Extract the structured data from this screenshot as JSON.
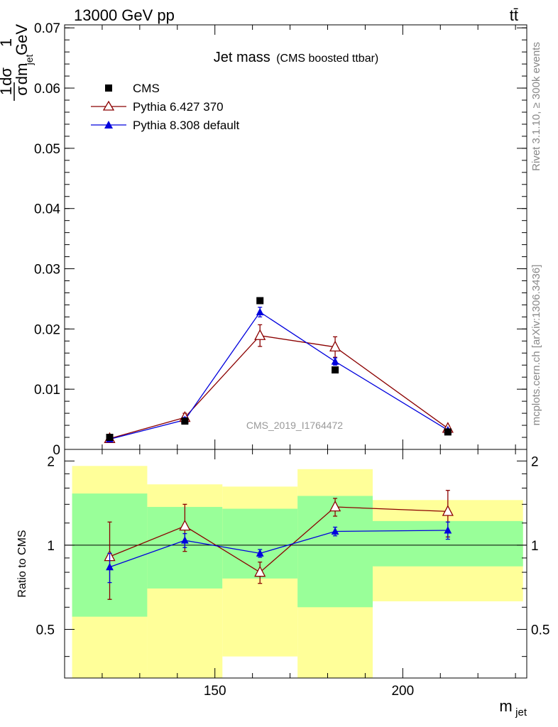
{
  "header": {
    "left": "13000 GeV pp",
    "right": "tt̄"
  },
  "side_labels": {
    "rivet": "Rivet 3.1.10, ≥ 300k events",
    "mcplots": "mcplots.cern.ch [arXiv:1306.3436]"
  },
  "colors": {
    "cms": "#000000",
    "pythia6": "#8b0000",
    "pythia8": "#0000dd",
    "band_outer": "#ffff99",
    "band_inner": "#99ff99",
    "watermark": "#999999",
    "side_text": "#888888"
  },
  "chart_data": [
    {
      "type": "scatter",
      "title": "Jet mass",
      "subtitle": "(CMS boosted ttbar)",
      "watermark": "CMS_2019_I1764472",
      "ylabel_num": "1",
      "ylabel_den": "σ",
      "ylabel_d1": "dσ",
      "ylabel_d2": "dm",
      "ylabel_sub": "jet",
      "ylabel_units_num": "1",
      "ylabel_units_den": "GeV",
      "xlim": [
        110,
        233
      ],
      "ylim": [
        0,
        0.0705
      ],
      "yticks": [
        0,
        0.01,
        0.02,
        0.03,
        0.04,
        0.05,
        0.06,
        0.07
      ],
      "ytick_labels": [
        "0",
        "0.01",
        "0.02",
        "0.03",
        "0.04",
        "0.05",
        "0.06",
        "0.07"
      ],
      "legend_position": "top-left",
      "series": [
        {
          "name": "CMS",
          "marker": "square",
          "x": [
            122,
            142,
            162,
            182,
            212
          ],
          "y": [
            0.002,
            0.0047,
            0.0247,
            0.0132,
            0.0029
          ]
        },
        {
          "name": "Pythia 6.427 370",
          "marker": "open-triangle",
          "x": [
            122,
            142,
            162,
            182,
            212
          ],
          "y": [
            0.0018,
            0.0053,
            0.0189,
            0.017,
            0.0035
          ],
          "yerr": [
            0.0002,
            0.0007,
            0.0018,
            0.0017,
            0.0004
          ]
        },
        {
          "name": "Pythia 8.308 default",
          "marker": "filled-triangle",
          "x": [
            122,
            142,
            162,
            182,
            212
          ],
          "y": [
            0.0017,
            0.0049,
            0.0228,
            0.0146,
            0.0032
          ],
          "yerr": [
            0.0002,
            0.0004,
            0.0008,
            0.0006,
            0.0002
          ]
        }
      ]
    },
    {
      "type": "scatter",
      "ylabel": "Ratio to CMS",
      "xlabel": "m",
      "xlabel_sub": "jet",
      "xlim": [
        110,
        233
      ],
      "ylim": [
        0.335,
        2.2
      ],
      "yscale": "log",
      "reference_line": 1,
      "xticks": [
        150,
        200
      ],
      "xtick_labels": [
        "150",
        "200"
      ],
      "yticks": [
        0.5,
        1,
        2
      ],
      "ytick_labels": [
        "0.5",
        "1",
        "2"
      ],
      "bands": [
        {
          "x0": 112,
          "x1": 132,
          "inner": [
            0.555,
            1.53
          ],
          "outer": [
            0.335,
            1.92
          ]
        },
        {
          "x0": 132,
          "x1": 152,
          "inner": [
            0.7,
            1.37
          ],
          "outer": [
            0.335,
            1.65
          ]
        },
        {
          "x0": 152,
          "x1": 172,
          "inner": [
            0.76,
            1.35
          ],
          "outer": [
            0.4,
            1.62
          ]
        },
        {
          "x0": 172,
          "x1": 192,
          "inner": [
            0.6,
            1.5
          ],
          "outer": [
            0.335,
            1.87
          ]
        },
        {
          "x0": 192,
          "x1": 232,
          "inner": [
            0.84,
            1.22
          ],
          "outer": [
            0.63,
            1.45
          ]
        }
      ],
      "series": [
        {
          "name": "Pythia 6.427 370",
          "marker": "open-triangle",
          "x": [
            122,
            142,
            162,
            182,
            212
          ],
          "y": [
            0.91,
            1.17,
            0.8,
            1.37,
            1.32
          ],
          "yerr_low": [
            0.27,
            0.22,
            0.07,
            0.1,
            0.25
          ],
          "yerr_high": [
            0.3,
            0.23,
            0.07,
            0.1,
            0.25
          ]
        },
        {
          "name": "Pythia 8.308 default",
          "marker": "filled-triangle",
          "x": [
            122,
            142,
            162,
            182,
            212
          ],
          "y": [
            0.835,
            1.04,
            0.935,
            1.12,
            1.13
          ],
          "yerr_low": [
            0.1,
            0.06,
            0.03,
            0.04,
            0.08
          ],
          "yerr_high": [
            0.1,
            0.06,
            0.03,
            0.04,
            0.08
          ]
        }
      ]
    }
  ]
}
